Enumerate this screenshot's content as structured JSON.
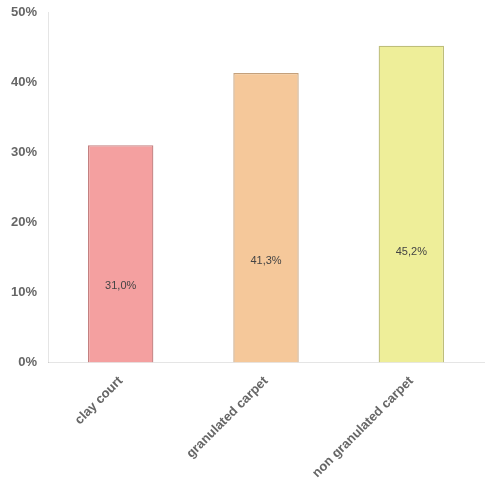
{
  "chart_data": {
    "type": "bar",
    "categories": [
      "clay court",
      "granulated carpet",
      "non granulated carpet"
    ],
    "values": [
      31.0,
      41.3,
      45.2
    ],
    "value_labels": [
      "31,0%",
      "41,3%",
      "45,2%"
    ],
    "data_labels": true,
    "colors": [
      "#F4A0A0",
      "#F5C89A",
      "#EEEE99"
    ],
    "ylim": [
      0,
      50
    ],
    "yticks": [
      {
        "value": 0,
        "label": "0%"
      },
      {
        "value": 10,
        "label": "10%"
      },
      {
        "value": 20,
        "label": "20%"
      },
      {
        "value": 30,
        "label": "30%"
      },
      {
        "value": 40,
        "label": "40%"
      },
      {
        "value": 50,
        "label": "50%"
      }
    ],
    "grid": false
  }
}
